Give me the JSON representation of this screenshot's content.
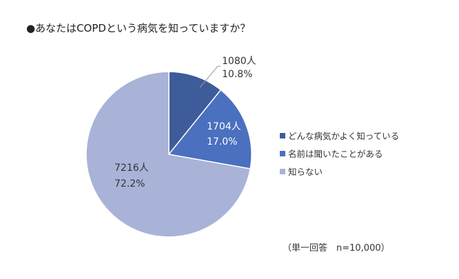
{
  "chart_data": {
    "type": "pie",
    "title": "●あなたはCOPDという病気を知っていますか？",
    "categories": [
      "どんな病気かよく知っている",
      "名前は聞いたことがある",
      "知らない"
    ],
    "values": [
      10.8,
      17.0,
      72.2
    ],
    "counts": [
      "1080人",
      "1704人",
      "7216人"
    ],
    "percent_labels": [
      "10.8%",
      "17.0%",
      "72.2%"
    ],
    "colors": [
      "#3E5C9A",
      "#4A70BF",
      "#A8B3D7"
    ],
    "legend_position": "right",
    "note": "（単一回答　n=10,000）"
  }
}
